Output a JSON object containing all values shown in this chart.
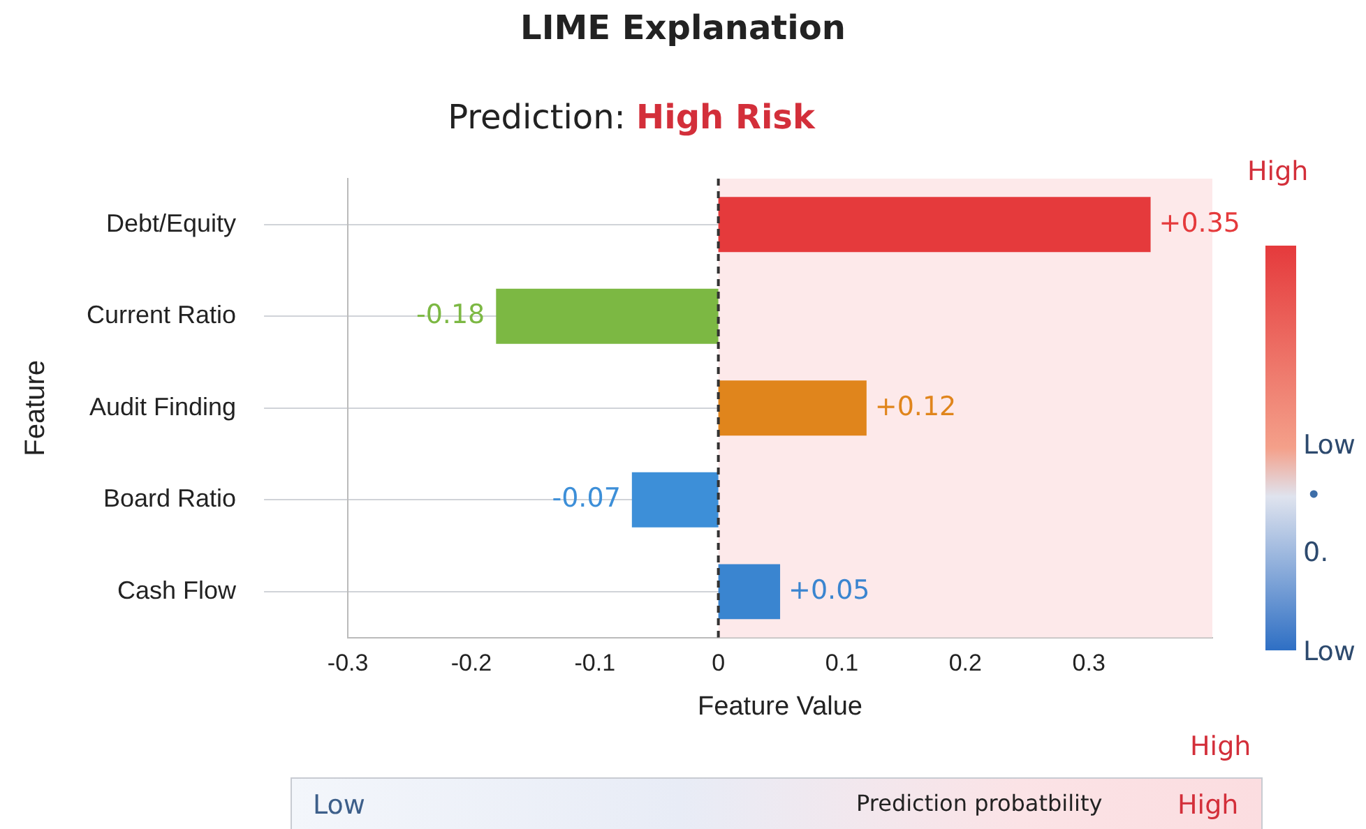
{
  "chart_data": {
    "type": "bar",
    "orientation": "horizontal",
    "title": "LIME Explanation",
    "subtitle": "Prediction: High Risk",
    "xlabel": "Feature Value",
    "ylabel": "Feature",
    "categories": [
      "Debt/Equity",
      "Current Ratio",
      "Audit Finding",
      "Board Ratio",
      "Cash Flow"
    ],
    "values": [
      0.35,
      -0.18,
      0.12,
      -0.07,
      0.05
    ],
    "colors": [
      "#e53a3c",
      "#7cb843",
      "#e0851c",
      "#3d8fd8",
      "#3a85d0"
    ],
    "value_labels": [
      "+0.35",
      "-0.18",
      "+0.12",
      "-0.07",
      "+0.05"
    ],
    "xlim": [
      -0.3,
      0.4
    ],
    "xticks": [
      -0.3,
      -0.2,
      -0.1,
      0,
      0.1,
      0.2,
      0.3
    ],
    "grid": "y",
    "legend": false,
    "ref_lines": [
      {
        "axis": "x",
        "value": 0,
        "color": "#333333",
        "line_style": "dashed"
      }
    ],
    "bands": [
      {
        "axis": "x",
        "from": 0,
        "to": 0.4,
        "color": "#fde9ea"
      }
    ],
    "annotations": [
      "High",
      "Low",
      "•",
      "0.",
      "Low",
      "High",
      "Low",
      "Prediction probatbility",
      "High"
    ]
  }
}
